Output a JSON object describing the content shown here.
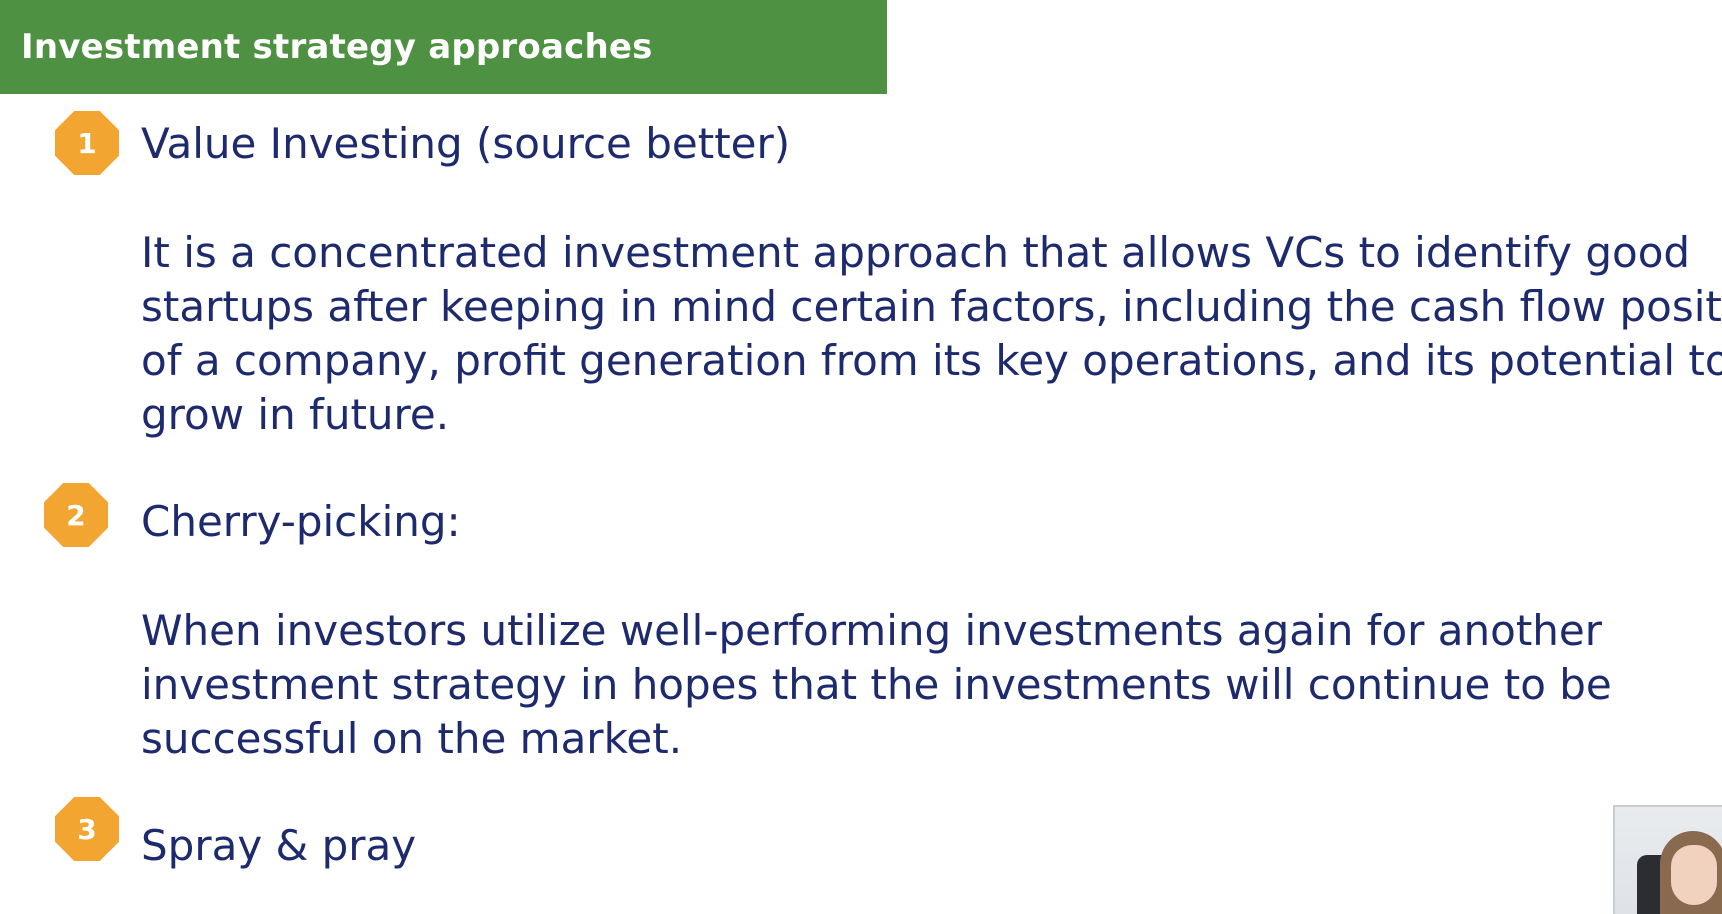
{
  "slide": {
    "title": "Investment strategy approaches",
    "items": [
      {
        "number": "1",
        "heading": "Value Investing (source better)",
        "body_lines": [
          "It is a concentrated investment approach that allows VCs to identify good",
          "startups after keeping in mind certain factors, including the cash flow position",
          "of a company, profit generation from its key operations, and its potential to",
          "grow in future."
        ]
      },
      {
        "number": "2",
        "heading": "Cherry-picking:",
        "body_lines": [
          "When investors utilize well-performing investments again for another",
          "investment strategy in hopes that the investments will continue to be",
          "successful on the market."
        ]
      },
      {
        "number": "3",
        "heading": "Spray & pray",
        "body_lines": []
      }
    ]
  },
  "colors": {
    "title_bar": "#4f9142",
    "title_text": "#ffffff",
    "badge": "#f2a531",
    "body_text": "#1d2a6e"
  },
  "icons": {
    "webcam": "presenter-webcam-thumbnail"
  }
}
